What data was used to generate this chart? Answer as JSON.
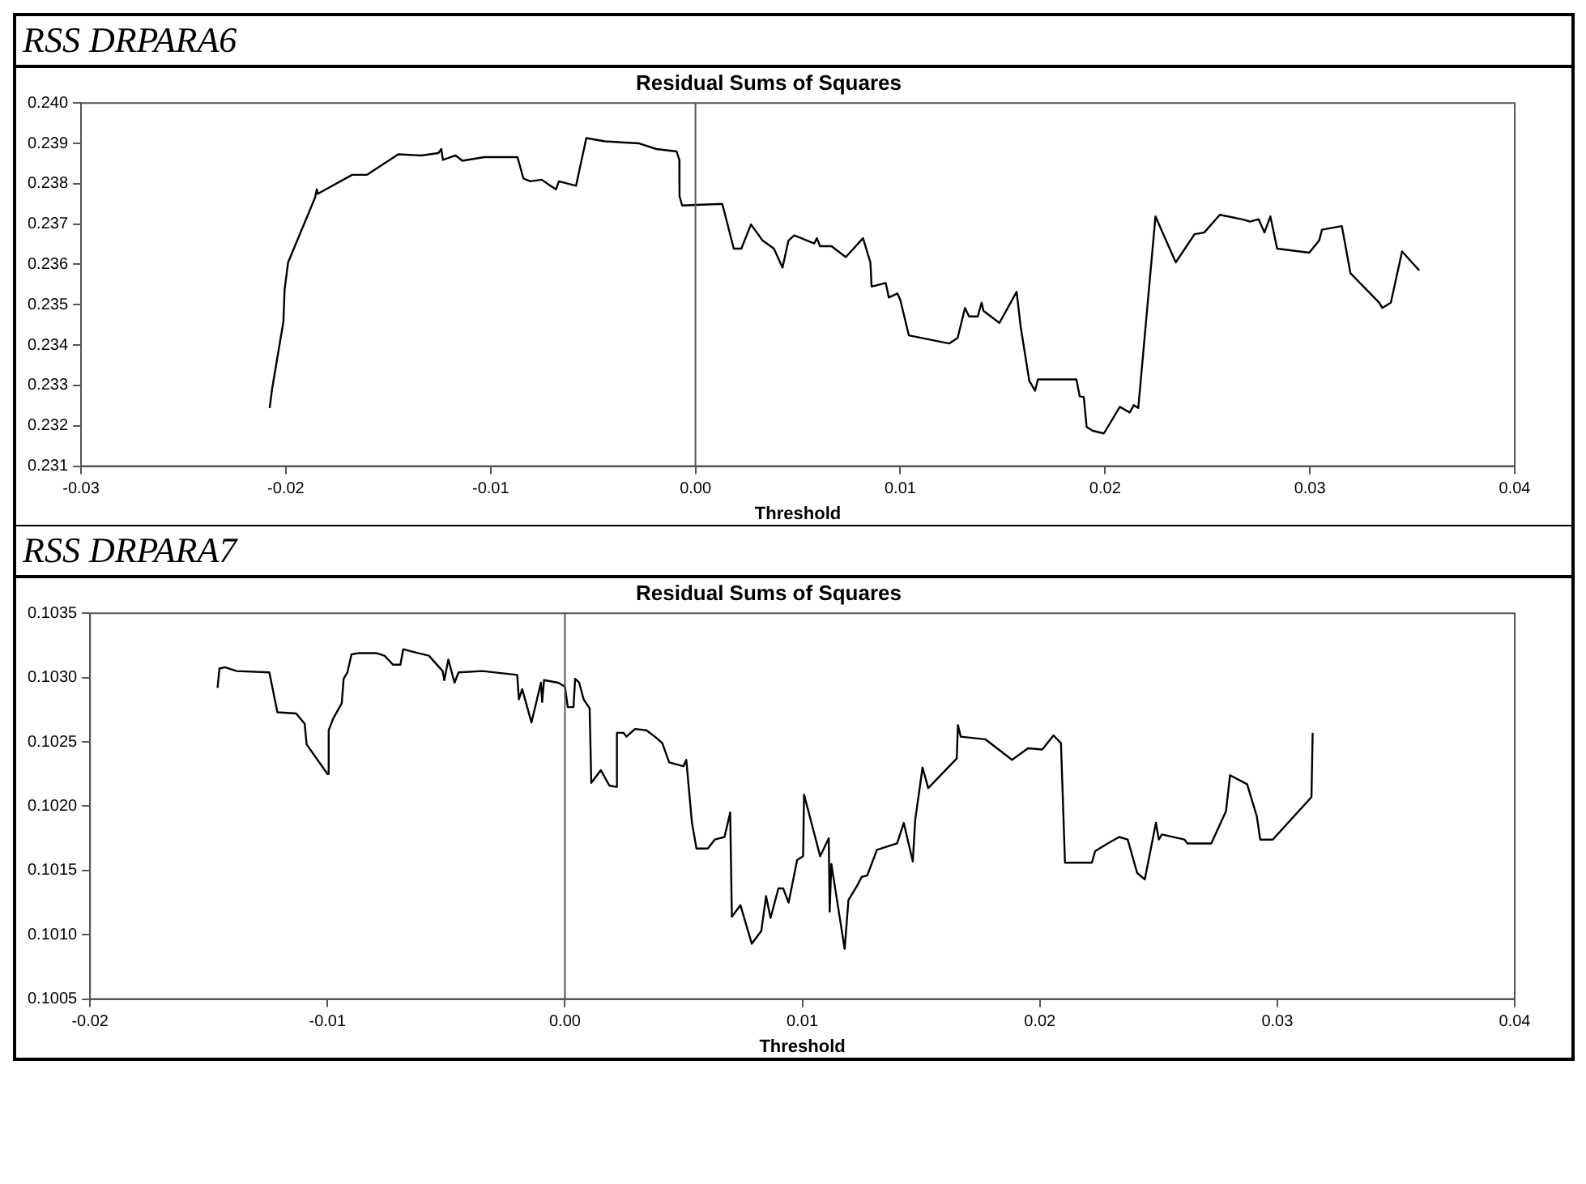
{
  "chart_data": [
    {
      "type": "line",
      "title": "RSS DRPARA6",
      "subtitle": "Residual Sums of Squares",
      "xlabel": "Threshold",
      "marker": "none",
      "grid": false,
      "legend": false,
      "xlim": [
        -0.03,
        0.04
      ],
      "xticks": [
        {
          "value": -0.03,
          "label": "-0.03"
        },
        {
          "value": -0.02,
          "label": "-0.02"
        },
        {
          "value": -0.01,
          "label": "-0.01"
        },
        {
          "value": 0,
          "label": "0.00"
        },
        {
          "value": 0.01,
          "label": "0.01"
        },
        {
          "value": 0.02,
          "label": "0.02"
        },
        {
          "value": 0.03,
          "label": "0.03"
        },
        {
          "value": 0.04,
          "label": "0.04"
        }
      ],
      "ylim": [
        0.231,
        0.24
      ],
      "yticks": [
        0.231,
        0.232,
        0.233,
        0.234,
        0.235,
        0.236,
        0.237,
        0.238,
        0.239,
        {
          "value": 0.24,
          "label": "0.240"
        }
      ],
      "ref_lines": [
        {
          "axis": "x",
          "value": 0,
          "color": "#555555"
        }
      ],
      "series": [
        {
          "color": "#000000",
          "x": [
            -0.02079,
            -0.02067,
            -0.02012,
            -0.02006,
            -0.01989,
            -0.01857,
            -0.01849,
            -0.01844,
            -0.01676,
            -0.01605,
            -0.01451,
            -0.01339,
            -0.01255,
            -0.01241,
            -0.01233,
            -0.01171,
            -0.01138,
            -0.01031,
            -0.00869,
            -0.0084,
            -0.00807,
            -0.00751,
            -0.00709,
            -0.00681,
            -0.00667,
            -0.00583,
            -0.00533,
            -0.00443,
            -0.00275,
            -0.00191,
            -0.00092,
            -0.00079,
            -0.00078,
            -0.00065,
            0.00131,
            0.00187,
            0.00224,
            0.00271,
            0.00328,
            0.00383,
            0.00425,
            0.00454,
            0.00482,
            0.0058,
            0.00593,
            0.00608,
            0.00664,
            0.00734,
            0.00818,
            0.00854,
            0.0086,
            0.00929,
            0.00944,
            0.00986,
            0.01,
            0.01042,
            0.01238,
            0.0128,
            0.01316,
            0.01336,
            0.01378,
            0.01397,
            0.01406,
            0.01484,
            0.01568,
            0.01588,
            0.0163,
            0.01658,
            0.01672,
            0.0186,
            0.01876,
            0.01896,
            0.0191,
            0.01938,
            0.01994,
            0.02072,
            0.0212,
            0.0214,
            0.02162,
            0.02246,
            0.02345,
            0.02437,
            0.02484,
            0.0256,
            0.02666,
            0.02708,
            0.0275,
            0.02778,
            0.02807,
            0.0284,
            0.02997,
            0.03045,
            0.03059,
            0.03156,
            0.03198,
            0.03339,
            0.03353,
            0.03395,
            0.0345,
            0.03534
          ],
          "values": [
            0.23244,
            0.23292,
            0.23458,
            0.23538,
            0.23605,
            0.23766,
            0.23786,
            0.23775,
            0.23822,
            0.23822,
            0.23873,
            0.2387,
            0.23876,
            0.23886,
            0.23859,
            0.2387,
            0.23857,
            0.23866,
            0.23866,
            0.23813,
            0.23806,
            0.2381,
            0.23795,
            0.23786,
            0.23806,
            0.23795,
            0.23913,
            0.23905,
            0.239,
            0.23886,
            0.2388,
            0.23859,
            0.23769,
            0.23746,
            0.2375,
            0.23639,
            0.23639,
            0.23699,
            0.23659,
            0.23639,
            0.23592,
            0.23659,
            0.23672,
            0.23652,
            0.23665,
            0.23645,
            0.23645,
            0.23618,
            0.23665,
            0.23605,
            0.23545,
            0.23554,
            0.23518,
            0.23528,
            0.23512,
            0.23424,
            0.23404,
            0.23418,
            0.23492,
            0.23471,
            0.23471,
            0.23505,
            0.23485,
            0.23455,
            0.23532,
            0.23445,
            0.23311,
            0.23287,
            0.23315,
            0.23315,
            0.23273,
            0.23271,
            0.23197,
            0.23188,
            0.23181,
            0.23247,
            0.23233,
            0.23251,
            0.23244,
            0.23719,
            0.23605,
            0.23675,
            0.23679,
            0.23723,
            0.23712,
            0.23706,
            0.23712,
            0.23679,
            0.23719,
            0.23639,
            0.23629,
            0.23659,
            0.23686,
            0.23695,
            0.23578,
            0.23505,
            0.23492,
            0.23505,
            0.23632,
            0.23585
          ]
        }
      ]
    },
    {
      "type": "line",
      "title": "RSS DRPARA7",
      "subtitle": "Residual Sums of Squares",
      "xlabel": "Threshold",
      "marker": "none",
      "grid": false,
      "legend": false,
      "xlim": [
        -0.02,
        0.04
      ],
      "xticks": [
        {
          "value": -0.02,
          "label": "-0.02"
        },
        {
          "value": -0.01,
          "label": "-0.01"
        },
        {
          "value": 0,
          "label": "0.00"
        },
        {
          "value": 0.01,
          "label": "0.01"
        },
        {
          "value": 0.02,
          "label": "0.02"
        },
        {
          "value": 0.03,
          "label": "0.03"
        },
        {
          "value": 0.04,
          "label": "0.04"
        }
      ],
      "ylim": [
        0.1005,
        0.1035
      ],
      "yticks": [
        0.1005,
        {
          "value": 0.101,
          "label": "0.1010"
        },
        0.1015,
        {
          "value": 0.102,
          "label": "0.1020"
        },
        0.1025,
        {
          "value": 0.103,
          "label": "0.1030"
        },
        0.1035
      ],
      "ref_lines": [
        {
          "axis": "x",
          "value": 0,
          "color": "#555555"
        }
      ],
      "series": [
        {
          "color": "#000000",
          "x": [
            -0.01463,
            -0.01455,
            -0.01432,
            -0.01383,
            -0.01245,
            -0.01211,
            -0.01132,
            -0.01096,
            -0.01088,
            -0.01,
            -0.00995,
            -0.00976,
            -0.0094,
            -0.00932,
            -0.00916,
            -0.00899,
            -0.00868,
            -0.00796,
            -0.0076,
            -0.00724,
            -0.00693,
            -0.00681,
            -0.0064,
            -0.00573,
            -0.00515,
            -0.00508,
            -0.00491,
            -0.00465,
            -0.00448,
            -0.00347,
            -0.00201,
            -0.00194,
            -0.0018,
            -0.00141,
            -0.00101,
            -0.00096,
            -0.00088,
            -0.00029,
            0,
            0.00012,
            0.00036,
            0.00043,
            0.0006,
            0.00079,
            0.00104,
            0.00111,
            0.00151,
            0.00187,
            0.00214,
            0.00219,
            0.00247,
            0.00259,
            0.00295,
            0.00343,
            0.00379,
            0.0041,
            0.00439,
            0.00499,
            0.00511,
            0.00535,
            0.00554,
            0.00602,
            0.00631,
            0.00672,
            0.00696,
            0.00703,
            0.00739,
            0.00787,
            0.00827,
            0.00847,
            0.00866,
            0.00899,
            0.00919,
            0.00942,
            0.00978,
            0.01003,
            0.01007,
            0.01075,
            0.01111,
            0.01115,
            0.01122,
            0.01178,
            0.01194,
            0.0123,
            0.0125,
            0.01273,
            0.01314,
            0.01399,
            0.01427,
            0.01465,
            0.01475,
            0.01506,
            0.0153,
            0.0165,
            0.01655,
            0.01667,
            0.0177,
            0.01883,
            0.0195,
            0.0201,
            0.02058,
            0.02089,
            0.02106,
            0.02219,
            0.02233,
            0.02286,
            0.02334,
            0.0237,
            0.0241,
            0.02442,
            0.02489,
            0.02501,
            0.02514,
            0.02609,
            0.02622,
            0.02722,
            0.02784,
            0.02801,
            0.02873,
            0.02914,
            0.02928,
            0.02981,
            0.03144,
            0.03149
          ],
          "values": [
            0.10292,
            0.10307,
            0.10308,
            0.10305,
            0.10304,
            0.10273,
            0.10272,
            0.10264,
            0.10248,
            0.10225,
            0.10259,
            0.10268,
            0.1028,
            0.10299,
            0.10304,
            0.10318,
            0.10319,
            0.10319,
            0.10317,
            0.1031,
            0.1031,
            0.10322,
            0.1032,
            0.10317,
            0.10305,
            0.10298,
            0.10314,
            0.10296,
            0.10304,
            0.10305,
            0.10302,
            0.10283,
            0.10291,
            0.10265,
            0.10296,
            0.10281,
            0.10298,
            0.10296,
            0.10293,
            0.10277,
            0.10277,
            0.10299,
            0.10296,
            0.10283,
            0.10276,
            0.10218,
            0.10228,
            0.10216,
            0.10215,
            0.10257,
            0.10257,
            0.10254,
            0.1026,
            0.10259,
            0.10254,
            0.10249,
            0.10234,
            0.10231,
            0.10236,
            0.10187,
            0.10167,
            0.10167,
            0.10174,
            0.10176,
            0.10195,
            0.10114,
            0.10123,
            0.10093,
            0.10103,
            0.1013,
            0.10113,
            0.10136,
            0.10136,
            0.10125,
            0.10158,
            0.10161,
            0.10209,
            0.10161,
            0.10175,
            0.10118,
            0.10155,
            0.10089,
            0.10127,
            0.10138,
            0.10145,
            0.10146,
            0.10166,
            0.10171,
            0.10187,
            0.10157,
            0.10189,
            0.1023,
            0.10214,
            0.10237,
            0.10263,
            0.10254,
            0.10252,
            0.10236,
            0.10245,
            0.10244,
            0.10255,
            0.10249,
            0.10156,
            0.10156,
            0.10165,
            0.10171,
            0.10176,
            0.10174,
            0.10148,
            0.10143,
            0.10187,
            0.10174,
            0.10178,
            0.10174,
            0.10171,
            0.10171,
            0.10196,
            0.10224,
            0.10217,
            0.10192,
            0.10174,
            0.10174,
            0.10207,
            0.10257
          ]
        }
      ]
    }
  ]
}
